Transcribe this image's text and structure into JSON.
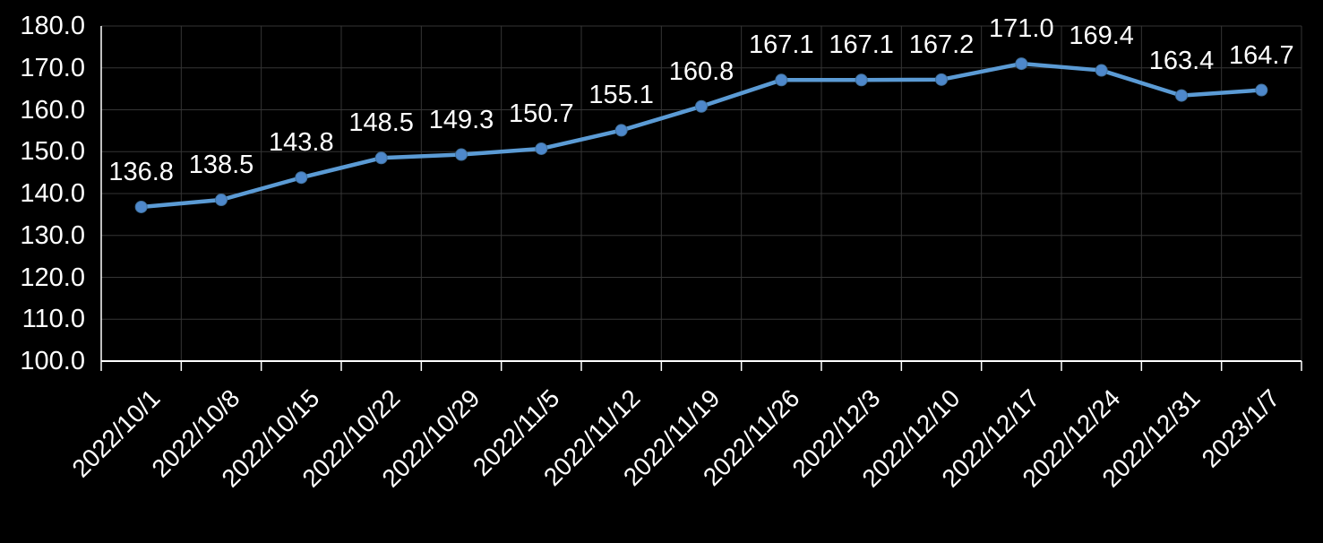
{
  "chart_data": {
    "type": "line",
    "title": "",
    "categories": [
      "2022/10/1",
      "2022/10/8",
      "2022/10/15",
      "2022/10/22",
      "2022/10/29",
      "2022/11/5",
      "2022/11/12",
      "2022/11/19",
      "2022/11/26",
      "2022/12/3",
      "2022/12/10",
      "2022/12/17",
      "2022/12/24",
      "2022/12/31",
      "2023/1/7"
    ],
    "values": [
      136.8,
      138.5,
      143.8,
      148.5,
      149.3,
      150.7,
      155.1,
      160.8,
      167.1,
      167.1,
      167.2,
      171.0,
      169.4,
      163.4,
      164.7
    ],
    "value_labels": [
      "136.8",
      "138.5",
      "143.8",
      "148.5",
      "149.3",
      "150.7",
      "155.1",
      "160.8",
      "167.1",
      "167.1",
      "167.2",
      "171.0",
      "169.4",
      "163.4",
      "164.7"
    ],
    "xlabel": "",
    "ylabel": "",
    "ylim": [
      100,
      180
    ],
    "ytick_step": 10,
    "ytick_values": [
      180,
      170,
      160,
      150,
      140,
      130,
      120,
      110,
      100
    ],
    "ytick_labels": [
      "180.0",
      "170.0",
      "160.0",
      "150.0",
      "140.0",
      "130.0",
      "120.0",
      "110.0",
      "100.0"
    ],
    "grid": true,
    "legend": "none",
    "marker_shape": "circle"
  },
  "colors": {
    "background": "#000000",
    "line": "#5B9BD5",
    "marker_fill": "#4E88CB",
    "marker_stroke": "#41719C",
    "grid": "#353535",
    "axis": "#FFFFFF",
    "text": "#FFFFFF"
  }
}
